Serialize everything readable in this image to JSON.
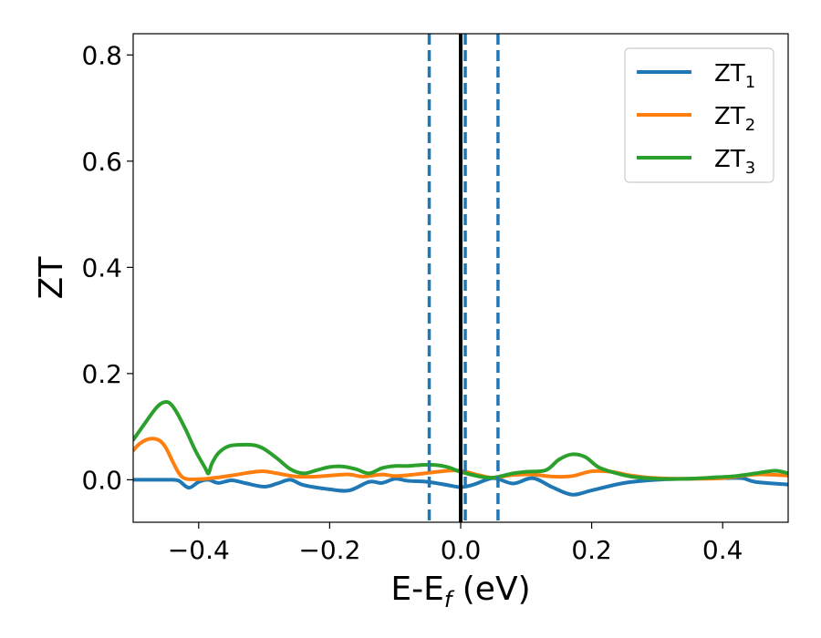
{
  "chart_data": {
    "type": "line",
    "xlabel": {
      "main": "E-E",
      "sub": "f",
      "tail": " (eV)"
    },
    "ylabel": "ZT",
    "xlim": [
      -0.5,
      0.5
    ],
    "ylim": [
      -0.08,
      0.84
    ],
    "xticks": [
      -0.4,
      -0.2,
      0.0,
      0.2,
      0.4
    ],
    "xtick_labels": [
      "−0.4",
      "−0.2",
      "0.0",
      "0.2",
      "0.4"
    ],
    "yticks": [
      0.0,
      0.2,
      0.4,
      0.6,
      0.8
    ],
    "ytick_labels": [
      "0.0",
      "0.2",
      "0.4",
      "0.6",
      "0.8"
    ],
    "legend_position": "top-right",
    "grid": false,
    "vertical_lines": [
      {
        "x": -0.048,
        "style": "dashed",
        "color": "#1f77b4"
      },
      {
        "x": 0.007,
        "style": "dashed",
        "color": "#1f77b4"
      },
      {
        "x": 0.057,
        "style": "dashed",
        "color": "#1f77b4"
      },
      {
        "x": 0.0,
        "style": "solid",
        "color": "#000000"
      }
    ],
    "series": [
      {
        "name": "ZT",
        "sub": "1",
        "color": "#1f77b4",
        "x": [
          -0.5,
          -0.46,
          -0.44,
          -0.43,
          -0.415,
          -0.4,
          -0.385,
          -0.37,
          -0.35,
          -0.33,
          -0.3,
          -0.28,
          -0.26,
          -0.24,
          -0.2,
          -0.17,
          -0.14,
          -0.12,
          -0.1,
          -0.08,
          -0.05,
          -0.02,
          0.0,
          0.02,
          0.05,
          0.08,
          0.11,
          0.14,
          0.17,
          0.2,
          0.25,
          0.3,
          0.35,
          0.4,
          0.43,
          0.45,
          0.5
        ],
        "y": [
          0.0,
          0.0,
          0.0,
          -0.002,
          -0.015,
          -0.004,
          0.0,
          -0.006,
          -0.001,
          -0.006,
          -0.013,
          -0.007,
          0.0,
          -0.01,
          -0.018,
          -0.02,
          -0.004,
          -0.006,
          0.002,
          -0.002,
          -0.004,
          -0.01,
          -0.014,
          -0.009,
          0.003,
          -0.007,
          0.003,
          -0.014,
          -0.028,
          -0.02,
          -0.006,
          0.0,
          0.002,
          0.003,
          0.003,
          -0.004,
          -0.009
        ]
      },
      {
        "name": "ZT",
        "sub": "2",
        "color": "#ff7f0e",
        "x": [
          -0.5,
          -0.49,
          -0.475,
          -0.46,
          -0.45,
          -0.44,
          -0.43,
          -0.42,
          -0.4,
          -0.38,
          -0.35,
          -0.32,
          -0.3,
          -0.28,
          -0.25,
          -0.22,
          -0.2,
          -0.17,
          -0.15,
          -0.12,
          -0.1,
          -0.07,
          -0.05,
          -0.02,
          0.0,
          0.03,
          0.05,
          0.08,
          0.11,
          0.14,
          0.17,
          0.2,
          0.23,
          0.26,
          0.3,
          0.35,
          0.4,
          0.45,
          0.5
        ],
        "y": [
          0.055,
          0.068,
          0.077,
          0.074,
          0.06,
          0.035,
          0.012,
          0.002,
          0.001,
          0.003,
          0.008,
          0.014,
          0.016,
          0.012,
          0.006,
          0.006,
          0.008,
          0.01,
          0.006,
          0.01,
          0.007,
          0.01,
          0.013,
          0.017,
          0.017,
          0.008,
          0.004,
          0.009,
          0.01,
          0.006,
          0.007,
          0.016,
          0.015,
          0.008,
          0.003,
          0.002,
          0.003,
          0.01,
          0.008
        ]
      },
      {
        "name": "ZT",
        "sub": "3",
        "color": "#2ca02c",
        "x": [
          -0.5,
          -0.48,
          -0.465,
          -0.455,
          -0.445,
          -0.435,
          -0.42,
          -0.405,
          -0.39,
          -0.385,
          -0.38,
          -0.37,
          -0.355,
          -0.335,
          -0.315,
          -0.3,
          -0.28,
          -0.26,
          -0.24,
          -0.22,
          -0.2,
          -0.18,
          -0.16,
          -0.14,
          -0.12,
          -0.1,
          -0.08,
          -0.06,
          -0.04,
          -0.02,
          0.0,
          0.03,
          0.05,
          0.08,
          0.1,
          0.13,
          0.15,
          0.17,
          0.19,
          0.21,
          0.23,
          0.26,
          0.3,
          0.35,
          0.38,
          0.42,
          0.45,
          0.48,
          0.5
        ],
        "y": [
          0.075,
          0.11,
          0.135,
          0.145,
          0.145,
          0.13,
          0.095,
          0.055,
          0.022,
          0.012,
          0.03,
          0.05,
          0.063,
          0.066,
          0.065,
          0.058,
          0.04,
          0.02,
          0.012,
          0.018,
          0.024,
          0.025,
          0.02,
          0.012,
          0.022,
          0.026,
          0.026,
          0.028,
          0.028,
          0.024,
          0.015,
          0.006,
          0.004,
          0.012,
          0.015,
          0.018,
          0.038,
          0.048,
          0.043,
          0.024,
          0.015,
          0.006,
          0.002,
          0.002,
          0.004,
          0.007,
          0.012,
          0.017,
          0.012
        ]
      }
    ]
  }
}
